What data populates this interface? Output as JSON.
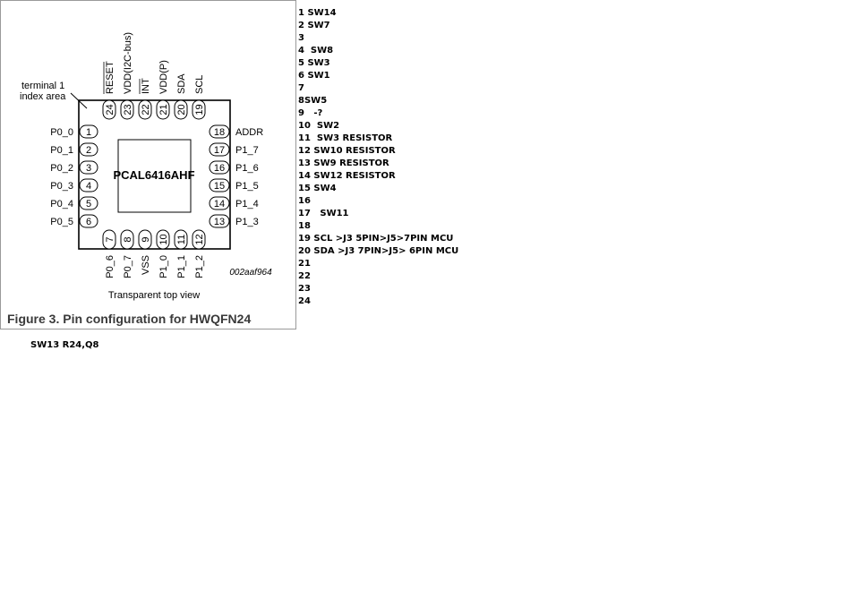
{
  "chip": {
    "name": "PCAL6416AHF",
    "index_label_line1": "terminal 1",
    "index_label_line2": "index area",
    "view_label": "Transparent top view",
    "code": "002aaf964",
    "caption": "Figure 3.  Pin configuration for HWQFN24"
  },
  "pins_left": [
    {
      "num": "1",
      "label": "P0_0"
    },
    {
      "num": "2",
      "label": "P0_1"
    },
    {
      "num": "3",
      "label": "P0_2"
    },
    {
      "num": "4",
      "label": "P0_3"
    },
    {
      "num": "5",
      "label": "P0_4"
    },
    {
      "num": "6",
      "label": "P0_5"
    }
  ],
  "pins_right": [
    {
      "num": "18",
      "label": "ADDR"
    },
    {
      "num": "17",
      "label": "P1_7"
    },
    {
      "num": "16",
      "label": "P1_6"
    },
    {
      "num": "15",
      "label": "P1_5"
    },
    {
      "num": "14",
      "label": "P1_4"
    },
    {
      "num": "13",
      "label": "P1_3"
    }
  ],
  "pins_top": [
    {
      "num": "24",
      "label": "RESET"
    },
    {
      "num": "23",
      "label": "VDD(I2C-bus)"
    },
    {
      "num": "22",
      "label": "INT"
    },
    {
      "num": "21",
      "label": "VDD(P)"
    },
    {
      "num": "20",
      "label": "SDA"
    },
    {
      "num": "19",
      "label": "SCL"
    }
  ],
  "pins_bottom": [
    {
      "num": "7",
      "label": "P0_6"
    },
    {
      "num": "8",
      "label": "P0_7"
    },
    {
      "num": "9",
      "label": "VSS"
    },
    {
      "num": "10",
      "label": "P1_0"
    },
    {
      "num": "11",
      "label": "P1_1"
    },
    {
      "num": "12",
      "label": "P1_2"
    }
  ],
  "notes": [
    "1 SW14",
    "2 SW7",
    "3",
    "4  SW8",
    "5 SW3",
    "6 SW1",
    "7",
    "8SW5",
    "9   -?",
    "10  SW2",
    "11  SW3 RESISTOR",
    "12 SW10 RESISTOR",
    "13 SW9 RESISTOR",
    "14 SW12 RESISTOR",
    "15 SW4",
    "16",
    "17   SW11",
    "18",
    "19 SCL >J3 5PIN>J5>7PIN MCU",
    "20 SDA >J3 7PIN>J5> 6PIN MCU",
    "21",
    "22",
    "23",
    "24"
  ],
  "footnote": "SW13 R24,Q8"
}
